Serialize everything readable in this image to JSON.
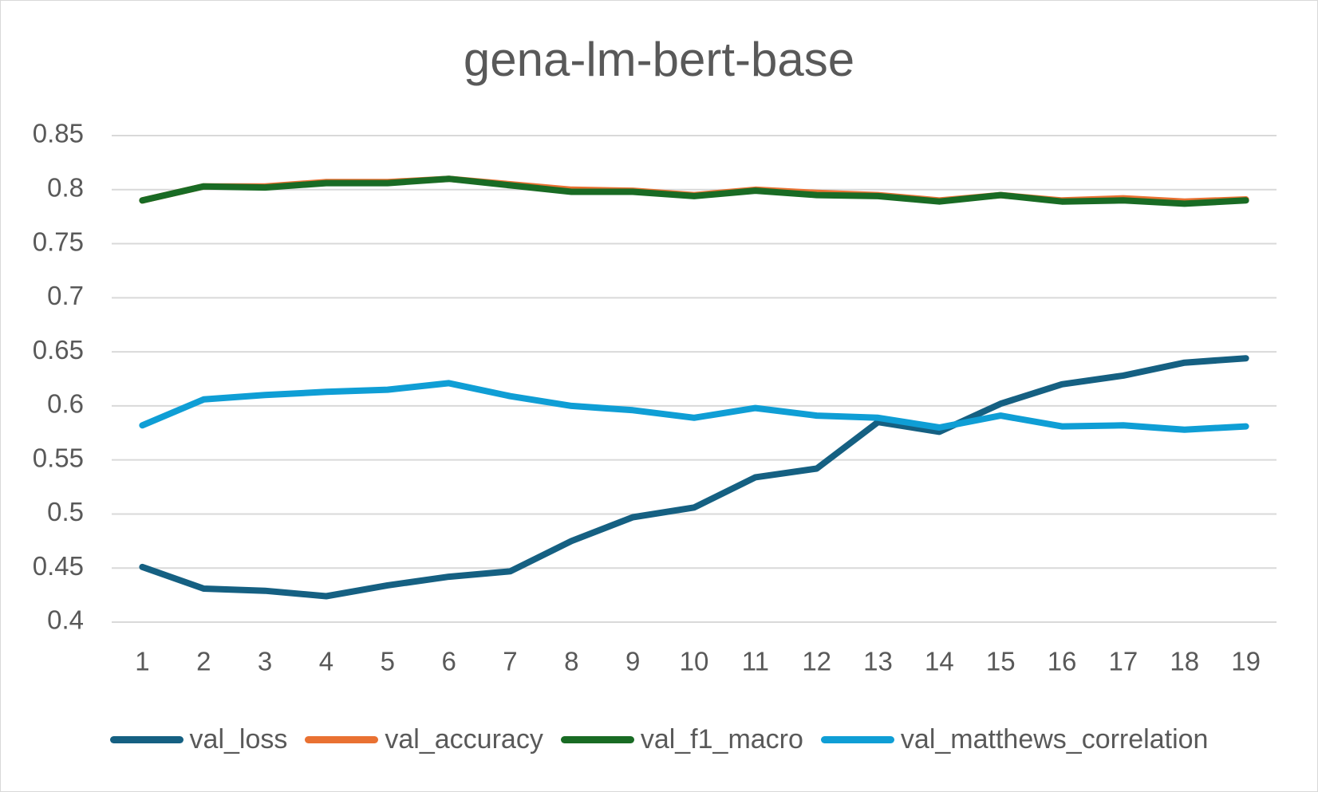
{
  "chart_data": {
    "type": "line",
    "title": "gena-lm-bert-base",
    "xlabel": "",
    "ylabel": "",
    "categories": [
      "1",
      "2",
      "3",
      "4",
      "5",
      "6",
      "7",
      "8",
      "9",
      "10",
      "11",
      "12",
      "13",
      "14",
      "15",
      "16",
      "17",
      "18",
      "19"
    ],
    "y_ticks": [
      "0.4",
      "0.45",
      "0.5",
      "0.55",
      "0.6",
      "0.65",
      "0.7",
      "0.75",
      "0.8",
      "0.85"
    ],
    "ylim": [
      0.4,
      0.85
    ],
    "grid": true,
    "legend_position": "bottom",
    "series": [
      {
        "name": "val_loss",
        "color": "#156082",
        "values": [
          0.451,
          0.431,
          0.429,
          0.424,
          0.434,
          0.442,
          0.447,
          0.475,
          0.497,
          0.506,
          0.534,
          0.542,
          0.585,
          0.576,
          0.602,
          0.62,
          0.628,
          0.64,
          0.644
        ]
      },
      {
        "name": "val_accuracy",
        "color": "#e97132",
        "values": [
          0.79,
          0.803,
          0.803,
          0.807,
          0.807,
          0.81,
          0.805,
          0.8,
          0.799,
          0.795,
          0.8,
          0.797,
          0.795,
          0.79,
          0.795,
          0.79,
          0.792,
          0.789,
          0.791
        ]
      },
      {
        "name": "val_f1_macro",
        "color": "#196b24",
        "values": [
          0.79,
          0.803,
          0.802,
          0.806,
          0.806,
          0.81,
          0.804,
          0.798,
          0.798,
          0.794,
          0.799,
          0.795,
          0.794,
          0.789,
          0.795,
          0.789,
          0.79,
          0.787,
          0.79
        ]
      },
      {
        "name": "val_matthews_correlation",
        "color": "#0f9ed5",
        "values": [
          0.582,
          0.606,
          0.61,
          0.613,
          0.615,
          0.621,
          0.609,
          0.6,
          0.596,
          0.589,
          0.598,
          0.591,
          0.589,
          0.58,
          0.591,
          0.581,
          0.582,
          0.578,
          0.581
        ]
      }
    ]
  }
}
